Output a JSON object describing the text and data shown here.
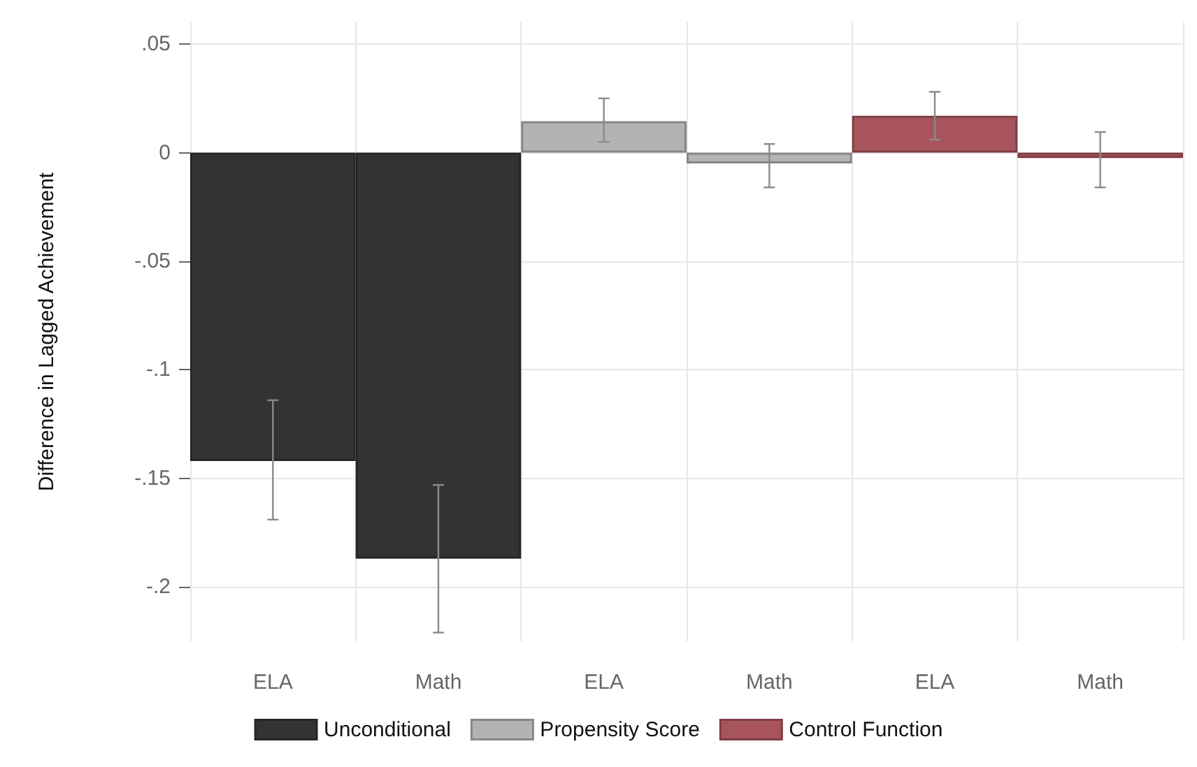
{
  "chart_data": {
    "type": "bar",
    "ylabel": "Difference in Lagged Achievement",
    "categories": [
      "ELA",
      "Math",
      "ELA",
      "Math",
      "ELA",
      "Math"
    ],
    "series": [
      {
        "name": "Unconditional",
        "color": "#333333",
        "values": [
          -0.142,
          -0.187,
          null,
          null,
          null,
          null
        ],
        "errors": [
          [
            -0.169,
            -0.114
          ],
          [
            -0.221,
            -0.153
          ],
          null,
          null,
          null,
          null
        ]
      },
      {
        "name": "Propensity Score",
        "color": "#b3b3b3",
        "values": [
          null,
          null,
          0.0145,
          -0.005,
          null,
          null
        ],
        "errors": [
          null,
          null,
          [
            0.005,
            0.025
          ],
          [
            -0.016,
            0.004
          ],
          null,
          null
        ]
      },
      {
        "name": "Control Function",
        "color": "#a8545c",
        "values": [
          null,
          null,
          null,
          null,
          0.017,
          -0.0025
        ],
        "errors": [
          null,
          null,
          null,
          null,
          [
            0.006,
            0.028
          ],
          [
            -0.016,
            0.0095
          ]
        ]
      }
    ],
    "ylim": [
      -0.225,
      0.06
    ],
    "yticks": [
      {
        "value": 0.05,
        "label": ".05"
      },
      0,
      {
        "value": -0.05,
        "label": "-.05"
      },
      {
        "value": -0.1,
        "label": "-.1"
      },
      {
        "value": -0.15,
        "label": "-.15"
      },
      {
        "value": -0.2,
        "label": "-.2"
      }
    ],
    "grid": true,
    "legend": "bottom"
  }
}
